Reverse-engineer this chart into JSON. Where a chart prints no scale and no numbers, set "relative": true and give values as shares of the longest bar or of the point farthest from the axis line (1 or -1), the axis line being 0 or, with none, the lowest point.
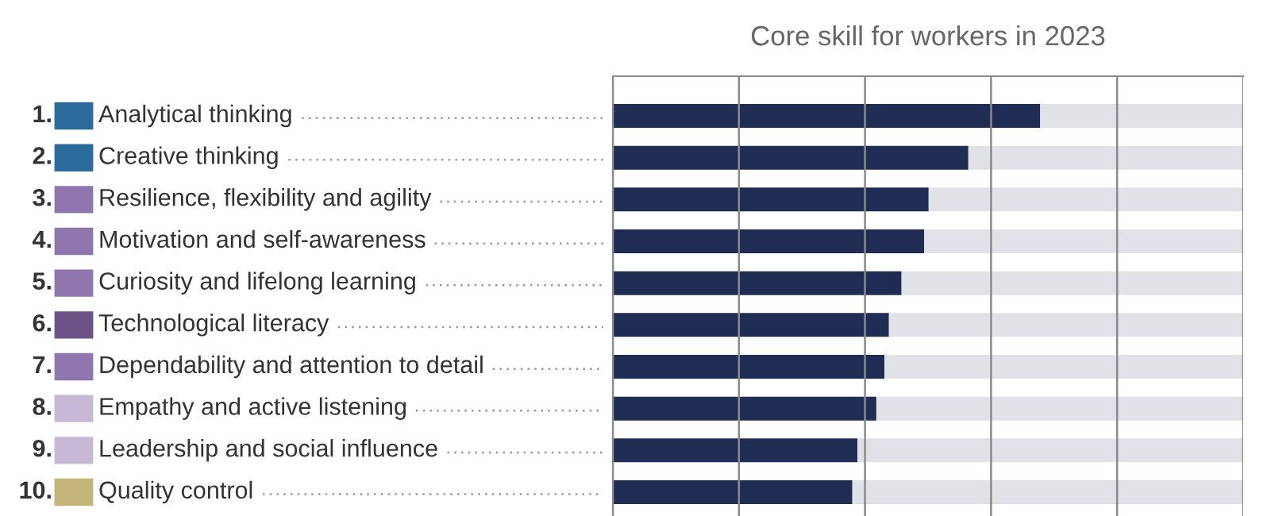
{
  "chart_data": {
    "type": "bar",
    "orientation": "horizontal",
    "stacked": true,
    "relative": true,
    "grid": "x",
    "title": "Core skill for workers in 2023",
    "categories": [
      "1. Analytical thinking",
      "2. Creative thinking",
      "3. Resilience, flexibility and agility",
      "4. Motivation and self-awareness",
      "5. Curiosity and lifelong learning",
      "6. Technological literacy",
      "7. Dependability and attention to detail",
      "8. Empathy and active listening",
      "9. Leadership and social influence",
      "10. Quality control"
    ],
    "series": [
      {
        "color": "#1f2d55",
        "values": [
          0.678,
          0.564,
          0.501,
          0.494,
          0.458,
          0.438,
          0.431,
          0.418,
          0.388,
          0.38
        ]
      },
      {
        "color": "#e1e2e8",
        "values": [
          0.322,
          0.436,
          0.499,
          0.506,
          0.542,
          0.562,
          0.569,
          0.582,
          0.612,
          0.62
        ]
      }
    ]
  }
}
